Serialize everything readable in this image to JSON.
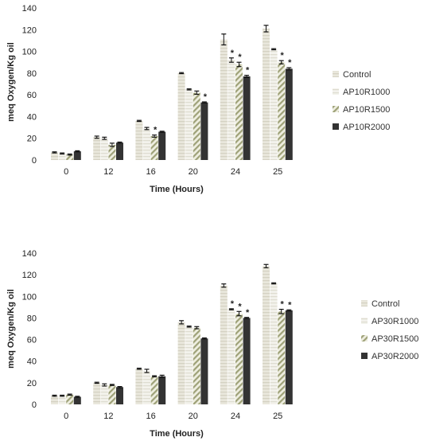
{
  "chart_data": [
    {
      "type": "bar",
      "xlabel": "Time (Hours)",
      "ylabel": "meq Oxygen/Kg oil",
      "ylim": [
        0,
        140
      ],
      "yticks": [
        0,
        20,
        40,
        60,
        80,
        100,
        120,
        140
      ],
      "categories": [
        "0",
        "12",
        "16",
        "20",
        "24",
        "25"
      ],
      "legend_position": "right",
      "series": [
        {
          "name": "Control",
          "pattern": "light-stripe",
          "values": [
            7,
            21,
            36,
            80,
            111,
            121
          ],
          "errors": [
            0.5,
            1,
            0.5,
            0.5,
            5,
            3
          ],
          "significant": [
            false,
            false,
            false,
            false,
            false,
            false
          ]
        },
        {
          "name": "AP10R1000",
          "pattern": "pale-stripe",
          "values": [
            6,
            20,
            29,
            65,
            92,
            102
          ],
          "errors": [
            0.5,
            1,
            1,
            0.5,
            2,
            0.5
          ],
          "significant": [
            false,
            false,
            false,
            false,
            true,
            false
          ]
        },
        {
          "name": "AP10R1500",
          "pattern": "diagonal",
          "values": [
            5,
            14,
            22,
            62,
            88,
            90
          ],
          "errors": [
            0.5,
            1.5,
            1,
            1.5,
            2,
            1.5
          ],
          "significant": [
            false,
            false,
            true,
            false,
            true,
            true
          ]
        },
        {
          "name": "AP10R2000",
          "pattern": "solid-dark",
          "values": [
            8,
            16,
            26,
            53,
            77,
            84
          ],
          "errors": [
            0.5,
            0.5,
            0.5,
            0.5,
            1,
            1
          ],
          "significant": [
            false,
            false,
            false,
            true,
            true,
            true
          ]
        }
      ],
      "colors": {
        "series1": "#e6e4d9",
        "series2": "#efeee8",
        "series3": "#b9bc98",
        "series4": "#333333"
      }
    },
    {
      "type": "bar",
      "xlabel": "Time (Hours)",
      "ylabel": "meq Oxygen/Kg oil",
      "ylim": [
        0,
        140
      ],
      "yticks": [
        0,
        20,
        40,
        60,
        80,
        100,
        120,
        140
      ],
      "categories": [
        "0",
        "12",
        "16",
        "20",
        "24",
        "25"
      ],
      "legend_position": "right",
      "series": [
        {
          "name": "Control",
          "pattern": "light-stripe",
          "values": [
            8,
            20,
            33,
            76,
            110,
            128
          ],
          "errors": [
            0.5,
            0.5,
            0.5,
            1.5,
            1.5,
            1.5
          ],
          "significant": [
            false,
            false,
            false,
            false,
            false,
            false
          ]
        },
        {
          "name": "AP30R1000",
          "pattern": "pale-stripe",
          "values": [
            8,
            18,
            31,
            72,
            88,
            112
          ],
          "errors": [
            0.5,
            1,
            1.5,
            0.5,
            0.5,
            0.5
          ],
          "significant": [
            false,
            false,
            false,
            false,
            true,
            false
          ]
        },
        {
          "name": "AP30R1500",
          "pattern": "diagonal",
          "values": [
            9,
            18,
            26,
            71,
            84,
            86
          ],
          "errors": [
            0.5,
            0.5,
            0.5,
            1,
            2,
            2
          ],
          "significant": [
            false,
            false,
            false,
            false,
            true,
            true
          ]
        },
        {
          "name": "AP30R2000",
          "pattern": "solid-dark",
          "values": [
            7,
            16,
            26,
            61,
            80,
            87
          ],
          "errors": [
            0.5,
            0.5,
            1,
            0.5,
            0.5,
            0.5
          ],
          "significant": [
            false,
            false,
            false,
            false,
            true,
            true
          ]
        }
      ],
      "colors": {
        "series1": "#e6e4d9",
        "series2": "#efeee8",
        "series3": "#b9bc98",
        "series4": "#333333"
      }
    }
  ],
  "significance_marker": "*"
}
